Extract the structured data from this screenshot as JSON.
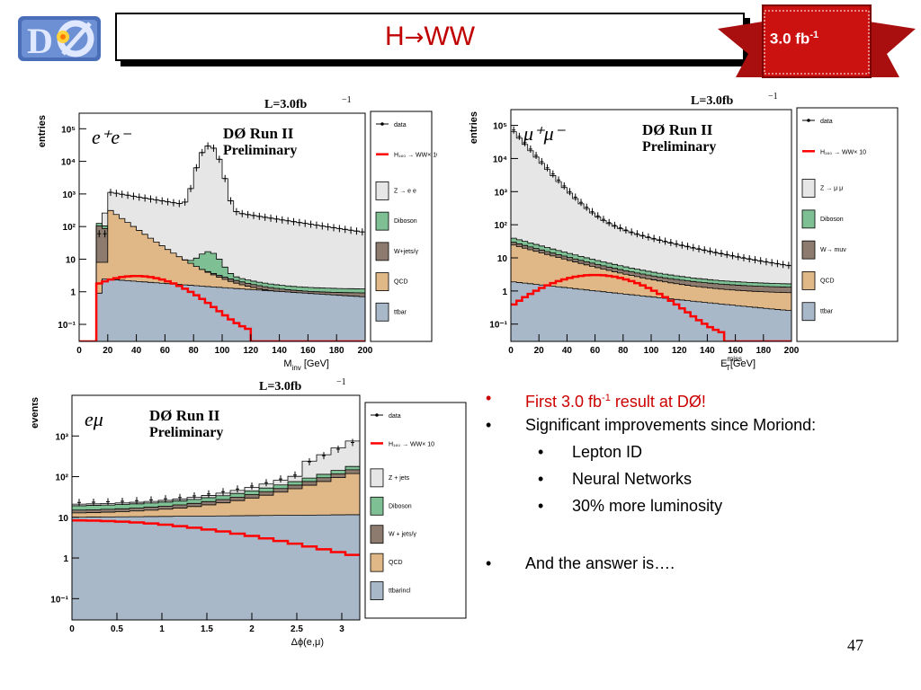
{
  "header": {
    "title_prefix": "H",
    "title_arrow": "→",
    "title_suffix": "WW",
    "lumi_badge_main": "3.0 fb",
    "lumi_badge_sup": "-1"
  },
  "colors": {
    "title": "#c00000",
    "ribbon": "#cc1111",
    "zbkg": "#e6e6e6",
    "diboson": "#7fbf94",
    "wjets": "#8c7b6e",
    "qcd": "#e0b888",
    "ttbar": "#a8b8c8",
    "signal": "#ff0000"
  },
  "plots": {
    "ee": {
      "lumi": "L=3.0fb",
      "lumi_sup": "−1",
      "channel": "e⁺e⁻",
      "experiment": "DØ Run II",
      "status": "Preliminary",
      "ylabel": "entries",
      "xlabel": "M",
      "xlabel_sub": "inv",
      "xlabel_unit": " [GeV]",
      "yticks": [
        "10⁵",
        "10⁴",
        "10³",
        "10²",
        "10",
        "1",
        "10⁻¹"
      ],
      "xticks": [
        "0",
        "20",
        "40",
        "60",
        "80",
        "100",
        "120",
        "140",
        "160",
        "180",
        "200"
      ],
      "legend": [
        "data",
        "H₁₆₀ → WW× 10",
        "Z → e e",
        "Diboson",
        "W+jets/γ",
        "QCD",
        "ttbar"
      ]
    },
    "mumu": {
      "lumi": "L=3.0fb",
      "lumi_sup": "−1",
      "channel": "μ⁺μ⁻",
      "experiment": "DØ Run II",
      "status": "Preliminary",
      "ylabel": "entries",
      "xlabel": "E",
      "xlabel_sub": "T",
      "xlabel_sup": "miss",
      "xlabel_unit": "[GeV]",
      "yticks": [
        "10⁵",
        "10⁴",
        "10³",
        "10²",
        "10",
        "1",
        "10⁻¹"
      ],
      "xticks": [
        "0",
        "20",
        "40",
        "60",
        "80",
        "100",
        "120",
        "140",
        "160",
        "180",
        "200"
      ],
      "legend": [
        "data",
        "H₁₆₀ → WW× 10",
        "Z → μ μ",
        "Diboson",
        "W→ muν",
        "QCD",
        "ttbar"
      ]
    },
    "emu": {
      "lumi": "L=3.0fb",
      "lumi_sup": "−1",
      "channel": "eμ",
      "experiment": "DØ Run II",
      "status": "Preliminary",
      "ylabel": "events",
      "xlabel": "Δϕ(e,μ)",
      "yticks": [
        "10³",
        "10²",
        "10",
        "1",
        "10⁻¹"
      ],
      "xticks": [
        "0",
        "0.5",
        "1",
        "1.5",
        "2",
        "2.5",
        "3"
      ],
      "legend": [
        "data",
        "H₁₆₀ → WW× 10",
        "Z + jets",
        "Diboson",
        "W + jets/γ",
        "QCD",
        "ttbarincl"
      ]
    }
  },
  "bullets": [
    {
      "level": 1,
      "text": "First 3.0 fb",
      "sup": "-1",
      "tail": " result at DØ!",
      "red": true
    },
    {
      "level": 1,
      "text": "Significant improvements since Moriond:"
    },
    {
      "level": 2,
      "text": "Lepton ID"
    },
    {
      "level": 2,
      "text": "Neural Networks"
    },
    {
      "level": 2,
      "text": "30% more luminosity"
    },
    {
      "level": 0,
      "text": ""
    },
    {
      "level": 1,
      "text": "And the answer is…."
    }
  ],
  "page_number": "47"
}
